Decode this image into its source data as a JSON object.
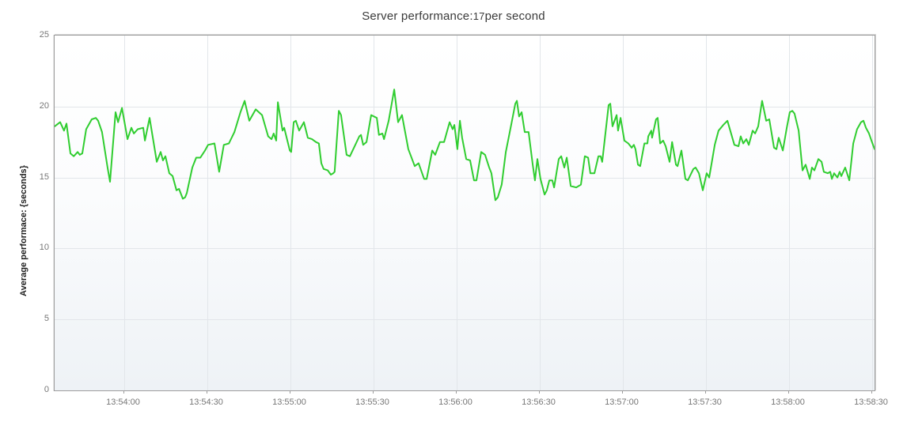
{
  "header": {
    "title_prefix": "Server performance:",
    "title_value": "17",
    "title_suffix": "per second"
  },
  "chart_data": {
    "type": "line",
    "title": "Server performance: 17 per second",
    "xlabel": "",
    "ylabel": "Average performace: {seconds}",
    "ylim": [
      0,
      25
    ],
    "grid": true,
    "legend": false,
    "line_color": "#30cd30",
    "grid_color": "#e2e6ea",
    "border_color": "#9c9c9c",
    "tick_text_color": "#767676",
    "y_ticks": [
      {
        "label": "25",
        "value": 25
      },
      {
        "label": "20",
        "value": 20
      },
      {
        "label": "15",
        "value": 15
      },
      {
        "label": "10",
        "value": 10
      },
      {
        "label": "5",
        "value": 5
      },
      {
        "label": "0",
        "value": 0
      }
    ],
    "x_start_time": "13:53:35",
    "x_end_time": "13:58:32",
    "x_span_s": 296,
    "x_ticks": [
      {
        "label": "13:54:00",
        "offset_s": 25
      },
      {
        "label": "13:54:30",
        "offset_s": 55
      },
      {
        "label": "13:55:00",
        "offset_s": 85
      },
      {
        "label": "13:55:30",
        "offset_s": 115
      },
      {
        "label": "13:56:00",
        "offset_s": 145
      },
      {
        "label": "13:56:30",
        "offset_s": 175
      },
      {
        "label": "13:57:00",
        "offset_s": 205
      },
      {
        "label": "13:57:30",
        "offset_s": 235
      },
      {
        "label": "13:58:00",
        "offset_s": 265
      },
      {
        "label": "13:58:30",
        "offset_s": 295
      }
    ],
    "series": [
      {
        "name": "Average performace {seconds}",
        "points": [
          [
            0,
            18.6
          ],
          [
            2,
            18.9
          ],
          [
            3.4,
            18.3
          ],
          [
            4.3,
            18.8
          ],
          [
            5.7,
            16.7
          ],
          [
            6.9,
            16.5
          ],
          [
            8.3,
            16.8
          ],
          [
            9.1,
            16.6
          ],
          [
            10,
            16.7
          ],
          [
            11.4,
            18.4
          ],
          [
            13.4,
            19.1
          ],
          [
            14.9,
            19.2
          ],
          [
            15.7,
            19.0
          ],
          [
            17.1,
            18.2
          ],
          [
            19.1,
            15.7
          ],
          [
            20,
            14.7
          ],
          [
            22,
            19.6
          ],
          [
            22.9,
            18.9
          ],
          [
            24.3,
            19.9
          ],
          [
            26.3,
            17.7
          ],
          [
            27.7,
            18.5
          ],
          [
            28.6,
            18.1
          ],
          [
            30,
            18.4
          ],
          [
            32,
            18.5
          ],
          [
            32.6,
            17.6
          ],
          [
            34.3,
            19.2
          ],
          [
            36.9,
            16.1
          ],
          [
            38.3,
            16.8
          ],
          [
            39.1,
            16.2
          ],
          [
            40,
            16.5
          ],
          [
            41.4,
            15.3
          ],
          [
            42.6,
            15.1
          ],
          [
            44,
            14.1
          ],
          [
            44.9,
            14.2
          ],
          [
            46.3,
            13.5
          ],
          [
            47.1,
            13.6
          ],
          [
            47.7,
            13.9
          ],
          [
            49.7,
            15.7
          ],
          [
            51.1,
            16.4
          ],
          [
            52.6,
            16.4
          ],
          [
            54.3,
            16.9
          ],
          [
            55.4,
            17.3
          ],
          [
            57.7,
            17.4
          ],
          [
            59.4,
            15.4
          ],
          [
            61.1,
            17.3
          ],
          [
            62.9,
            17.4
          ],
          [
            64.9,
            18.2
          ],
          [
            67.1,
            19.6
          ],
          [
            68.6,
            20.4
          ],
          [
            70.3,
            19.0
          ],
          [
            72.6,
            19.8
          ],
          [
            74.9,
            19.4
          ],
          [
            77.1,
            17.9
          ],
          [
            78.3,
            17.7
          ],
          [
            79.1,
            18.1
          ],
          [
            80,
            17.6
          ],
          [
            80.6,
            20.3
          ],
          [
            82.3,
            18.3
          ],
          [
            82.9,
            18.5
          ],
          [
            84.9,
            16.9
          ],
          [
            85.4,
            16.8
          ],
          [
            86.3,
            18.9
          ],
          [
            87.1,
            19.0
          ],
          [
            88.3,
            18.3
          ],
          [
            90,
            18.9
          ],
          [
            91.4,
            17.8
          ],
          [
            92.9,
            17.7
          ],
          [
            94.3,
            17.5
          ],
          [
            95.4,
            17.4
          ],
          [
            96.3,
            16.0
          ],
          [
            97.1,
            15.6
          ],
          [
            98.6,
            15.5
          ],
          [
            99.7,
            15.2
          ],
          [
            100.6,
            15.3
          ],
          [
            101.1,
            15.4
          ],
          [
            102.6,
            19.7
          ],
          [
            103.4,
            19.4
          ],
          [
            105.4,
            16.6
          ],
          [
            106.6,
            16.5
          ],
          [
            108.3,
            17.2
          ],
          [
            110,
            17.9
          ],
          [
            110.6,
            18.0
          ],
          [
            111.4,
            17.3
          ],
          [
            112.6,
            17.5
          ],
          [
            114.3,
            19.4
          ],
          [
            116.3,
            19.2
          ],
          [
            117.1,
            18.0
          ],
          [
            118.3,
            18.1
          ],
          [
            118.9,
            17.7
          ],
          [
            120.6,
            19.0
          ],
          [
            122.6,
            21.2
          ],
          [
            124,
            18.9
          ],
          [
            125.4,
            19.4
          ],
          [
            127.7,
            17.0
          ],
          [
            130,
            15.8
          ],
          [
            131.4,
            16.0
          ],
          [
            133.4,
            14.9
          ],
          [
            134.3,
            14.9
          ],
          [
            136.3,
            16.9
          ],
          [
            137.4,
            16.6
          ],
          [
            139.1,
            17.5
          ],
          [
            140.6,
            17.5
          ],
          [
            142.6,
            18.9
          ],
          [
            143.7,
            18.4
          ],
          [
            144.3,
            18.7
          ],
          [
            145.4,
            17.0
          ],
          [
            146.3,
            19.0
          ],
          [
            147.1,
            17.8
          ],
          [
            148.6,
            16.3
          ],
          [
            150,
            16.2
          ],
          [
            151.4,
            14.8
          ],
          [
            152.3,
            14.8
          ],
          [
            154,
            16.8
          ],
          [
            155.4,
            16.6
          ],
          [
            156.9,
            15.7
          ],
          [
            157.7,
            15.3
          ],
          [
            159.1,
            13.4
          ],
          [
            160,
            13.6
          ],
          [
            161.4,
            14.5
          ],
          [
            162.9,
            16.8
          ],
          [
            164.9,
            18.8
          ],
          [
            166.3,
            20.2
          ],
          [
            166.9,
            20.4
          ],
          [
            167.7,
            19.3
          ],
          [
            168.6,
            19.6
          ],
          [
            169.7,
            18.2
          ],
          [
            171.1,
            18.2
          ],
          [
            172.6,
            15.9
          ],
          [
            173.4,
            14.8
          ],
          [
            174.3,
            16.3
          ],
          [
            175.4,
            14.9
          ],
          [
            176.9,
            13.8
          ],
          [
            177.7,
            14.1
          ],
          [
            178.6,
            14.8
          ],
          [
            179.7,
            14.8
          ],
          [
            180.3,
            14.3
          ],
          [
            182,
            16.3
          ],
          [
            182.9,
            16.5
          ],
          [
            184,
            15.7
          ],
          [
            184.9,
            16.4
          ],
          [
            186.3,
            14.4
          ],
          [
            188.3,
            14.3
          ],
          [
            190,
            14.5
          ],
          [
            191.4,
            16.5
          ],
          [
            192.6,
            16.4
          ],
          [
            193.4,
            15.3
          ],
          [
            194.9,
            15.3
          ],
          [
            196.3,
            16.5
          ],
          [
            197.1,
            16.5
          ],
          [
            197.7,
            16.1
          ],
          [
            200,
            20.1
          ],
          [
            200.6,
            20.2
          ],
          [
            201.4,
            18.6
          ],
          [
            202.9,
            19.4
          ],
          [
            203.4,
            18.3
          ],
          [
            204.3,
            19.2
          ],
          [
            205.7,
            17.6
          ],
          [
            207.1,
            17.4
          ],
          [
            208.3,
            17.1
          ],
          [
            209.1,
            17.3
          ],
          [
            209.7,
            17.0
          ],
          [
            210.6,
            15.9
          ],
          [
            211.4,
            15.8
          ],
          [
            212.9,
            17.4
          ],
          [
            214,
            17.4
          ],
          [
            214.3,
            17.9
          ],
          [
            215.4,
            18.3
          ],
          [
            215.7,
            17.8
          ],
          [
            217.1,
            19.1
          ],
          [
            217.7,
            19.2
          ],
          [
            218.6,
            17.4
          ],
          [
            219.7,
            17.6
          ],
          [
            220.6,
            17.2
          ],
          [
            222,
            16.1
          ],
          [
            222.9,
            17.5
          ],
          [
            224.3,
            15.9
          ],
          [
            224.9,
            15.8
          ],
          [
            226.3,
            16.9
          ],
          [
            227.7,
            14.9
          ],
          [
            228.6,
            14.8
          ],
          [
            230.6,
            15.6
          ],
          [
            231.4,
            15.7
          ],
          [
            232.6,
            15.3
          ],
          [
            234,
            14.1
          ],
          [
            235.4,
            15.3
          ],
          [
            236.3,
            15.0
          ],
          [
            238.3,
            17.3
          ],
          [
            239.7,
            18.3
          ],
          [
            241.4,
            18.7
          ],
          [
            242.9,
            19.0
          ],
          [
            245.4,
            17.3
          ],
          [
            246.9,
            17.2
          ],
          [
            247.7,
            17.9
          ],
          [
            248.6,
            17.4
          ],
          [
            249.7,
            17.7
          ],
          [
            250.6,
            17.3
          ],
          [
            252,
            18.3
          ],
          [
            252.9,
            18.1
          ],
          [
            254,
            18.6
          ],
          [
            255.4,
            20.4
          ],
          [
            256.9,
            19.0
          ],
          [
            258,
            19.1
          ],
          [
            259.7,
            17.1
          ],
          [
            260.6,
            17.0
          ],
          [
            261.4,
            17.8
          ],
          [
            262.9,
            16.9
          ],
          [
            264.3,
            18.5
          ],
          [
            265.4,
            19.6
          ],
          [
            266.3,
            19.7
          ],
          [
            267.1,
            19.5
          ],
          [
            268.6,
            18.3
          ],
          [
            270,
            15.5
          ],
          [
            271.1,
            15.9
          ],
          [
            272.3,
            15.1
          ],
          [
            272.6,
            14.9
          ],
          [
            273.4,
            15.7
          ],
          [
            274.3,
            15.5
          ],
          [
            275.7,
            16.3
          ],
          [
            276.9,
            16.1
          ],
          [
            277.7,
            15.4
          ],
          [
            279.1,
            15.3
          ],
          [
            280,
            15.4
          ],
          [
            280.6,
            14.9
          ],
          [
            281.4,
            15.3
          ],
          [
            282.6,
            15.0
          ],
          [
            283.4,
            15.4
          ],
          [
            284,
            15.1
          ],
          [
            285.4,
            15.7
          ],
          [
            286.9,
            14.8
          ],
          [
            288.3,
            17.4
          ],
          [
            289.7,
            18.4
          ],
          [
            291.1,
            18.9
          ],
          [
            292,
            19.0
          ],
          [
            292.9,
            18.5
          ],
          [
            294,
            18.1
          ],
          [
            294.9,
            17.6
          ],
          [
            296,
            17.0
          ]
        ]
      }
    ]
  }
}
